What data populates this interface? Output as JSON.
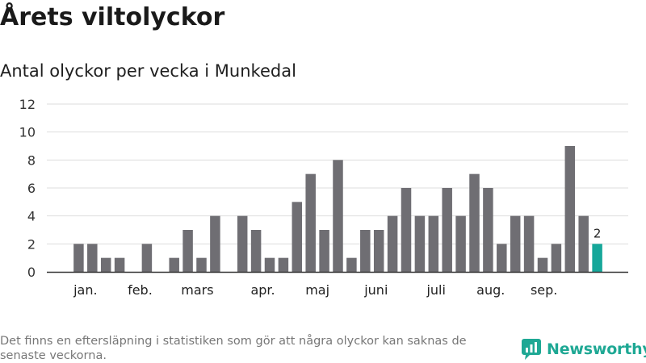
{
  "title": "Årets viltolyckor",
  "subtitle": "Antal olyckor per vecka i Munkedal",
  "footnote": "Det finns en eftersläpning i statistiken som gör att några olyckor kan saknas de senaste veckorna.",
  "brand": {
    "name": "Newsworthy",
    "icon": "bar-chart-logo-icon",
    "color": "#1ea894"
  },
  "colors": {
    "bar": "#6f6e73",
    "highlight": "#16a79a",
    "grid": "#dddddd",
    "axis": "#333333"
  },
  "chart_data": {
    "type": "bar",
    "title": "Antal olyckor per vecka i Munkedal",
    "xlabel": "",
    "ylabel": "",
    "ylim": [
      0,
      12
    ],
    "yticks": [
      0,
      2,
      4,
      6,
      8,
      10,
      12
    ],
    "grid": true,
    "weeks": [
      1,
      2,
      3,
      4,
      5,
      6,
      7,
      8,
      9,
      10,
      11,
      12,
      13,
      14,
      15,
      16,
      17,
      18,
      19,
      20,
      21,
      22,
      23,
      24,
      25,
      26,
      27,
      28,
      29,
      30,
      31,
      32,
      33,
      34,
      35,
      36,
      37,
      38,
      39,
      40
    ],
    "values": [
      null,
      2,
      2,
      1,
      1,
      0,
      2,
      0,
      1,
      3,
      1,
      4,
      0,
      4,
      3,
      1,
      1,
      5,
      7,
      3,
      8,
      1,
      3,
      3,
      4,
      6,
      4,
      4,
      6,
      4,
      7,
      6,
      2,
      4,
      4,
      1,
      2,
      9,
      4,
      2
    ],
    "highlight_index": 39,
    "highlight_label": "2",
    "month_labels": [
      {
        "label": "jan.",
        "week": 2.5
      },
      {
        "label": "feb.",
        "week": 6.5
      },
      {
        "label": "mars",
        "week": 10.7
      },
      {
        "label": "apr.",
        "week": 15.5
      },
      {
        "label": "maj",
        "week": 19.5
      },
      {
        "label": "juni",
        "week": 23.8
      },
      {
        "label": "juli",
        "week": 28.2
      },
      {
        "label": "aug.",
        "week": 32.2
      },
      {
        "label": "sep.",
        "week": 36.1
      }
    ]
  }
}
